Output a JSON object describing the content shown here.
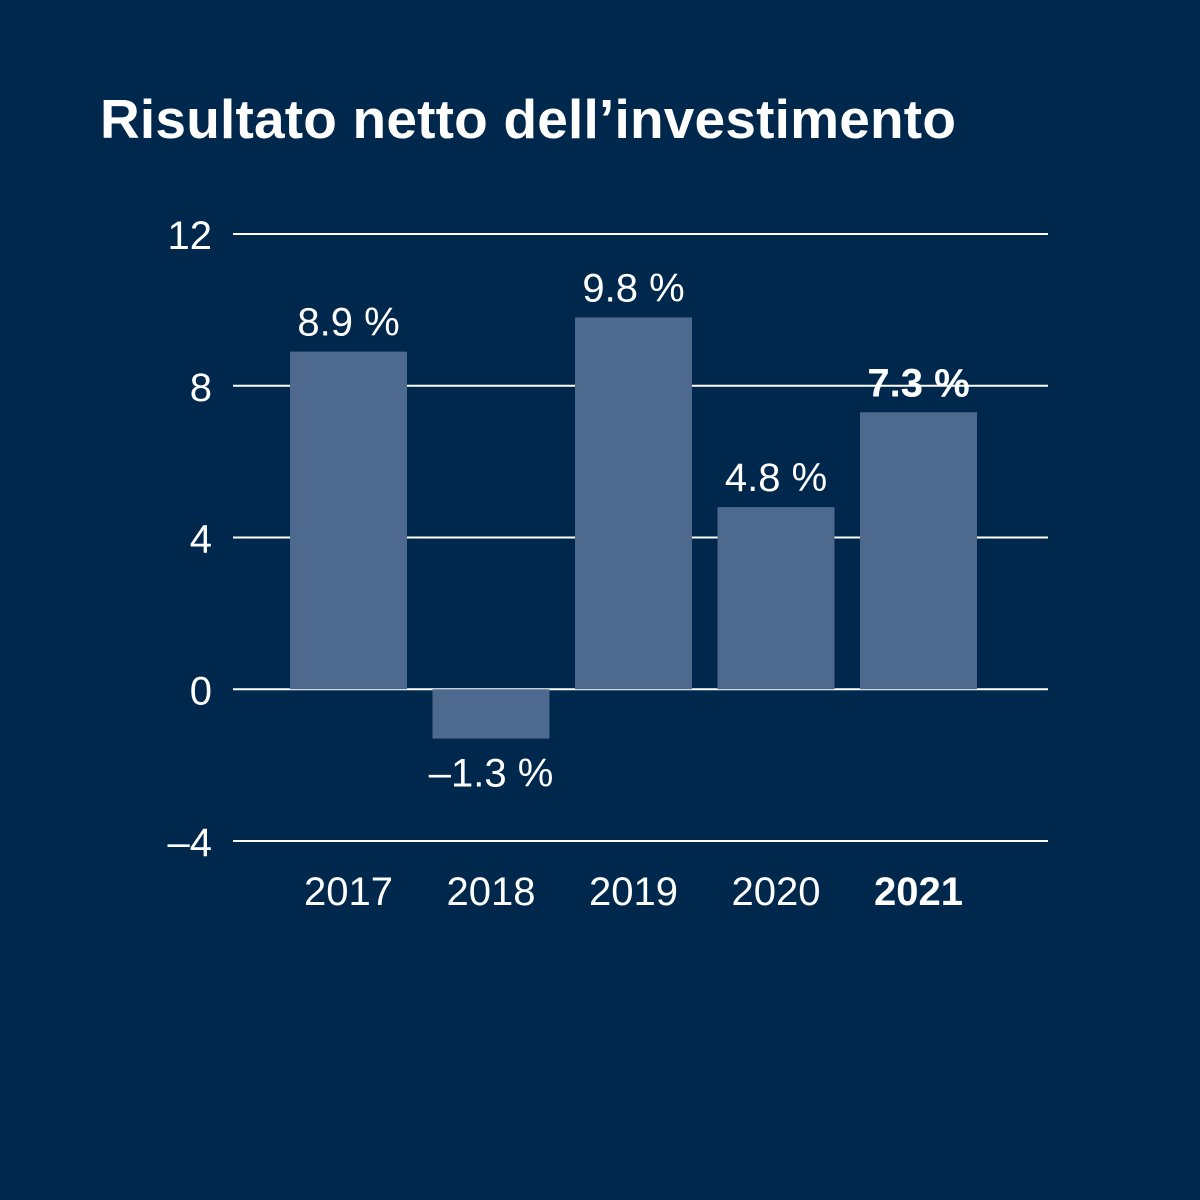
{
  "chart_data": {
    "type": "bar",
    "title": "Risultato netto dell’investimento",
    "categories": [
      "2017",
      "2018",
      "2019",
      "2020",
      "2021"
    ],
    "values": [
      8.9,
      -1.3,
      9.8,
      4.8,
      7.3
    ],
    "value_labels": [
      "8.9 %",
      "–1.3 %",
      "9.8 %",
      "4.8 %",
      "7.3 %"
    ],
    "highlighted_category": "2021",
    "y_ticks": [
      12,
      8,
      4,
      0,
      -4
    ],
    "y_tick_labels": [
      "12",
      "8",
      "4",
      "0",
      "–4"
    ],
    "ylim": [
      -4,
      12
    ],
    "grid": true,
    "xlabel": "",
    "ylabel": "",
    "colors": {
      "background": "#00284d",
      "bar": "#4d6a8e",
      "text": "#ffffff",
      "gridline": "#ffffff"
    }
  }
}
